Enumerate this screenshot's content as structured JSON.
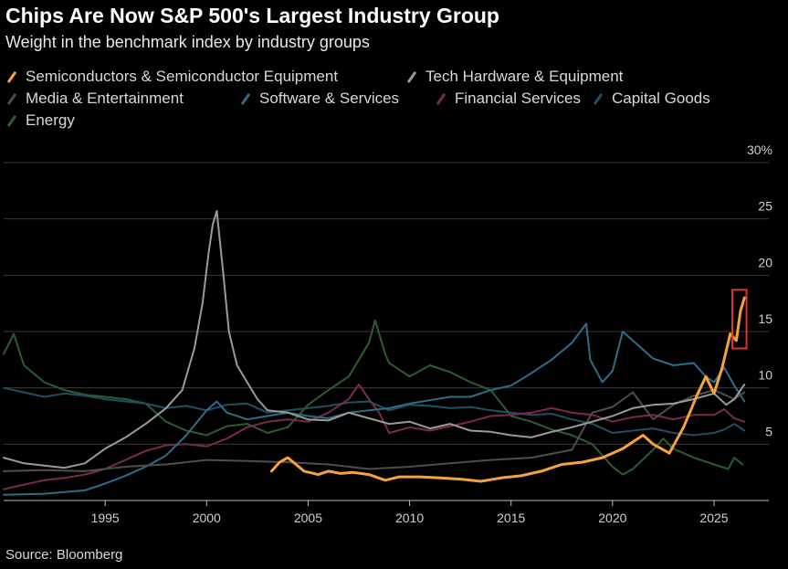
{
  "chart_data": {
    "type": "line",
    "title": "Chips Are Now S&P 500's Largest Industry Group",
    "subtitle": "Weight in the benchmark index by industry groups",
    "source": "Source: Bloomberg",
    "xlim": [
      1990,
      2026.8
    ],
    "ylim": [
      0,
      30
    ],
    "x_ticks": [
      1995,
      2000,
      2005,
      2010,
      2015,
      2020,
      2025
    ],
    "x_tick_labels": [
      "1995",
      "2000",
      "2005",
      "2010",
      "2015",
      "2020",
      "2025"
    ],
    "y_ticks": [
      5,
      10,
      15,
      20,
      25,
      30
    ],
    "y_tick_labels": [
      "5",
      "10",
      "15",
      "20",
      "25",
      "30%"
    ],
    "grid": "horizontal",
    "legend_position": "top-left",
    "highlight": {
      "x_range": [
        2025.9,
        2026.6
      ],
      "y_range": [
        13.5,
        18.7
      ],
      "color": "#e0332f"
    },
    "series": [
      {
        "name": "Semiconductors & Semiconductor Equipment",
        "color": "#f5a33b",
        "width": 3,
        "points": [
          [
            2003.2,
            2.6
          ],
          [
            2003.6,
            3.4
          ],
          [
            2004.0,
            3.8
          ],
          [
            2004.4,
            3.2
          ],
          [
            2004.8,
            2.6
          ],
          [
            2005.5,
            2.3
          ],
          [
            2006.0,
            2.6
          ],
          [
            2006.6,
            2.4
          ],
          [
            2007.2,
            2.5
          ],
          [
            2008.0,
            2.3
          ],
          [
            2008.8,
            1.8
          ],
          [
            2009.5,
            2.1
          ],
          [
            2010.5,
            2.1
          ],
          [
            2011.5,
            2.0
          ],
          [
            2012.5,
            1.9
          ],
          [
            2013.5,
            1.7
          ],
          [
            2014.5,
            2.0
          ],
          [
            2015.5,
            2.2
          ],
          [
            2016.5,
            2.6
          ],
          [
            2017.5,
            3.2
          ],
          [
            2018.5,
            3.4
          ],
          [
            2019.5,
            3.8
          ],
          [
            2020.5,
            4.6
          ],
          [
            2021.5,
            5.8
          ],
          [
            2022.0,
            5.0
          ],
          [
            2022.8,
            4.2
          ],
          [
            2023.5,
            6.5
          ],
          [
            2024.2,
            9.5
          ],
          [
            2024.6,
            11.0
          ],
          [
            2025.0,
            9.5
          ],
          [
            2025.4,
            11.8
          ],
          [
            2025.8,
            14.8
          ],
          [
            2026.1,
            14.2
          ],
          [
            2026.3,
            16.8
          ],
          [
            2026.5,
            18.0
          ]
        ]
      },
      {
        "name": "Tech Hardware & Equipment",
        "color": "#9a9a9a",
        "width": 2,
        "points": [
          [
            1990.0,
            3.8
          ],
          [
            1991.0,
            3.3
          ],
          [
            1992.0,
            3.1
          ],
          [
            1993.0,
            2.9
          ],
          [
            1994.0,
            3.3
          ],
          [
            1995.0,
            4.6
          ],
          [
            1996.0,
            5.6
          ],
          [
            1997.0,
            6.8
          ],
          [
            1998.0,
            8.2
          ],
          [
            1998.8,
            9.8
          ],
          [
            1999.4,
            13.5
          ],
          [
            1999.8,
            17.5
          ],
          [
            2000.1,
            22.0
          ],
          [
            2000.3,
            24.5
          ],
          [
            2000.5,
            25.7
          ],
          [
            2000.8,
            20.5
          ],
          [
            2001.1,
            15.0
          ],
          [
            2001.5,
            12.0
          ],
          [
            2002.0,
            10.5
          ],
          [
            2002.5,
            9.0
          ],
          [
            2003.0,
            8.0
          ],
          [
            2004.0,
            7.8
          ],
          [
            2005.0,
            7.2
          ],
          [
            2006.0,
            7.1
          ],
          [
            2007.0,
            7.8
          ],
          [
            2008.0,
            7.3
          ],
          [
            2009.0,
            6.8
          ],
          [
            2010.0,
            7.0
          ],
          [
            2011.0,
            6.4
          ],
          [
            2012.0,
            6.8
          ],
          [
            2013.0,
            6.2
          ],
          [
            2014.0,
            6.1
          ],
          [
            2015.0,
            5.8
          ],
          [
            2016.0,
            5.6
          ],
          [
            2017.0,
            6.1
          ],
          [
            2018.0,
            6.5
          ],
          [
            2019.0,
            7.0
          ],
          [
            2020.0,
            7.5
          ],
          [
            2021.0,
            8.2
          ],
          [
            2022.0,
            8.5
          ],
          [
            2023.0,
            8.6
          ],
          [
            2024.0,
            9.0
          ],
          [
            2025.0,
            9.5
          ],
          [
            2025.6,
            8.5
          ],
          [
            2026.0,
            9.0
          ],
          [
            2026.5,
            10.3
          ]
        ]
      },
      {
        "name": "Media & Entertainment",
        "color": "#4d4d4d",
        "width": 2,
        "points": [
          [
            1990.0,
            2.6
          ],
          [
            1992.0,
            2.7
          ],
          [
            1994.0,
            2.6
          ],
          [
            1996.0,
            3.0
          ],
          [
            1998.0,
            3.2
          ],
          [
            2000.0,
            3.6
          ],
          [
            2002.0,
            3.5
          ],
          [
            2004.0,
            3.4
          ],
          [
            2006.0,
            3.2
          ],
          [
            2008.0,
            2.8
          ],
          [
            2010.0,
            3.0
          ],
          [
            2012.0,
            3.3
          ],
          [
            2014.0,
            3.6
          ],
          [
            2016.0,
            3.8
          ],
          [
            2018.0,
            4.5
          ],
          [
            2019.0,
            7.8
          ],
          [
            2020.0,
            8.3
          ],
          [
            2021.0,
            9.6
          ],
          [
            2022.0,
            7.2
          ],
          [
            2023.0,
            8.5
          ],
          [
            2024.0,
            9.3
          ],
          [
            2025.0,
            9.8
          ],
          [
            2026.0,
            9.0
          ],
          [
            2026.5,
            9.6
          ]
        ]
      },
      {
        "name": "Software & Services",
        "color": "#2c6e8a",
        "width": 2,
        "points": [
          [
            1990.0,
            0.5
          ],
          [
            1992.0,
            0.6
          ],
          [
            1994.0,
            0.9
          ],
          [
            1995.0,
            1.5
          ],
          [
            1996.0,
            2.2
          ],
          [
            1997.0,
            3.0
          ],
          [
            1998.0,
            4.0
          ],
          [
            1999.0,
            5.8
          ],
          [
            2000.0,
            8.0
          ],
          [
            2000.5,
            8.8
          ],
          [
            2001.0,
            7.8
          ],
          [
            2002.0,
            7.2
          ],
          [
            2003.0,
            7.5
          ],
          [
            2004.0,
            7.8
          ],
          [
            2005.0,
            7.5
          ],
          [
            2006.0,
            7.3
          ],
          [
            2007.0,
            7.8
          ],
          [
            2008.0,
            8.0
          ],
          [
            2009.0,
            8.2
          ],
          [
            2010.0,
            8.6
          ],
          [
            2011.0,
            8.9
          ],
          [
            2012.0,
            9.2
          ],
          [
            2013.0,
            9.2
          ],
          [
            2014.0,
            9.8
          ],
          [
            2015.0,
            10.2
          ],
          [
            2016.0,
            11.3
          ],
          [
            2017.0,
            12.5
          ],
          [
            2018.0,
            14.0
          ],
          [
            2018.7,
            15.7
          ],
          [
            2018.9,
            12.5
          ],
          [
            2019.5,
            10.5
          ],
          [
            2020.0,
            11.5
          ],
          [
            2020.5,
            15.0
          ],
          [
            2021.0,
            14.2
          ],
          [
            2022.0,
            12.6
          ],
          [
            2023.0,
            12.0
          ],
          [
            2024.0,
            12.2
          ],
          [
            2024.6,
            11.0
          ],
          [
            2025.0,
            10.5
          ],
          [
            2025.5,
            11.8
          ],
          [
            2026.0,
            10.2
          ],
          [
            2026.5,
            8.8
          ]
        ]
      },
      {
        "name": "Financial Services",
        "color": "#7a2a4a",
        "width": 2,
        "points": [
          [
            1990.0,
            1.0
          ],
          [
            1991.0,
            1.4
          ],
          [
            1992.0,
            1.8
          ],
          [
            1993.0,
            2.0
          ],
          [
            1994.0,
            2.3
          ],
          [
            1995.0,
            2.8
          ],
          [
            1996.0,
            3.6
          ],
          [
            1997.0,
            4.4
          ],
          [
            1998.0,
            4.9
          ],
          [
            1999.0,
            5.0
          ],
          [
            2000.0,
            4.8
          ],
          [
            2001.0,
            5.5
          ],
          [
            2002.0,
            6.5
          ],
          [
            2003.0,
            7.0
          ],
          [
            2004.0,
            7.2
          ],
          [
            2005.0,
            7.0
          ],
          [
            2006.0,
            7.8
          ],
          [
            2007.0,
            9.0
          ],
          [
            2007.5,
            10.3
          ],
          [
            2008.0,
            9.0
          ],
          [
            2008.5,
            7.8
          ],
          [
            2009.0,
            6.0
          ],
          [
            2010.0,
            6.5
          ],
          [
            2011.0,
            6.2
          ],
          [
            2012.0,
            6.6
          ],
          [
            2013.0,
            7.0
          ],
          [
            2014.0,
            7.5
          ],
          [
            2015.0,
            7.6
          ],
          [
            2016.0,
            7.8
          ],
          [
            2017.0,
            8.2
          ],
          [
            2018.0,
            7.8
          ],
          [
            2019.0,
            7.6
          ],
          [
            2020.0,
            7.0
          ],
          [
            2021.0,
            7.4
          ],
          [
            2022.0,
            7.6
          ],
          [
            2023.0,
            7.2
          ],
          [
            2024.0,
            7.6
          ],
          [
            2025.0,
            7.6
          ],
          [
            2025.5,
            8.1
          ],
          [
            2026.0,
            7.3
          ],
          [
            2026.5,
            7.0
          ]
        ]
      },
      {
        "name": "Capital Goods",
        "color": "#1f4f63",
        "width": 2,
        "points": [
          [
            1990.0,
            10.0
          ],
          [
            1991.0,
            9.6
          ],
          [
            1992.0,
            9.2
          ],
          [
            1993.0,
            9.5
          ],
          [
            1994.0,
            9.3
          ],
          [
            1995.0,
            9.0
          ],
          [
            1996.0,
            8.8
          ],
          [
            1997.0,
            8.6
          ],
          [
            1998.0,
            8.2
          ],
          [
            1999.0,
            8.4
          ],
          [
            2000.0,
            8.0
          ],
          [
            2001.0,
            8.5
          ],
          [
            2002.0,
            8.6
          ],
          [
            2003.0,
            7.8
          ],
          [
            2004.0,
            8.0
          ],
          [
            2005.0,
            8.2
          ],
          [
            2006.0,
            8.4
          ],
          [
            2007.0,
            8.7
          ],
          [
            2008.0,
            8.8
          ],
          [
            2009.0,
            8.0
          ],
          [
            2010.0,
            8.5
          ],
          [
            2011.0,
            8.4
          ],
          [
            2012.0,
            8.2
          ],
          [
            2013.0,
            8.3
          ],
          [
            2014.0,
            8.0
          ],
          [
            2015.0,
            7.8
          ],
          [
            2016.0,
            7.6
          ],
          [
            2017.0,
            7.7
          ],
          [
            2018.0,
            7.2
          ],
          [
            2019.0,
            6.8
          ],
          [
            2020.0,
            6.0
          ],
          [
            2021.0,
            6.2
          ],
          [
            2022.0,
            6.4
          ],
          [
            2023.0,
            6.0
          ],
          [
            2024.0,
            5.8
          ],
          [
            2025.0,
            6.0
          ],
          [
            2025.5,
            6.3
          ],
          [
            2026.0,
            6.8
          ],
          [
            2026.5,
            6.2
          ]
        ]
      },
      {
        "name": "Energy",
        "color": "#2a5e31",
        "width": 2,
        "points": [
          [
            1990.0,
            13.0
          ],
          [
            1990.5,
            14.8
          ],
          [
            1991.0,
            12.0
          ],
          [
            1992.0,
            10.5
          ],
          [
            1993.0,
            9.8
          ],
          [
            1994.0,
            9.4
          ],
          [
            1995.0,
            9.2
          ],
          [
            1996.0,
            9.0
          ],
          [
            1997.0,
            8.6
          ],
          [
            1998.0,
            7.0
          ],
          [
            1999.0,
            6.2
          ],
          [
            2000.0,
            5.8
          ],
          [
            2001.0,
            6.6
          ],
          [
            2002.0,
            6.8
          ],
          [
            2003.0,
            6.0
          ],
          [
            2004.0,
            6.5
          ],
          [
            2005.0,
            8.5
          ],
          [
            2006.0,
            9.8
          ],
          [
            2007.0,
            11.0
          ],
          [
            2008.0,
            14.0
          ],
          [
            2008.3,
            16.0
          ],
          [
            2008.8,
            13.0
          ],
          [
            2009.0,
            12.2
          ],
          [
            2010.0,
            11.0
          ],
          [
            2011.0,
            12.0
          ],
          [
            2012.0,
            11.4
          ],
          [
            2013.0,
            10.5
          ],
          [
            2014.0,
            9.8
          ],
          [
            2015.0,
            7.5
          ],
          [
            2016.0,
            7.0
          ],
          [
            2017.0,
            6.3
          ],
          [
            2018.0,
            5.8
          ],
          [
            2019.0,
            5.0
          ],
          [
            2020.0,
            3.0
          ],
          [
            2020.5,
            2.3
          ],
          [
            2021.0,
            2.8
          ],
          [
            2022.0,
            4.5
          ],
          [
            2022.5,
            5.5
          ],
          [
            2023.0,
            4.6
          ],
          [
            2024.0,
            3.8
          ],
          [
            2025.0,
            3.2
          ],
          [
            2025.7,
            2.8
          ],
          [
            2026.0,
            3.8
          ],
          [
            2026.4,
            3.2
          ]
        ]
      }
    ]
  }
}
